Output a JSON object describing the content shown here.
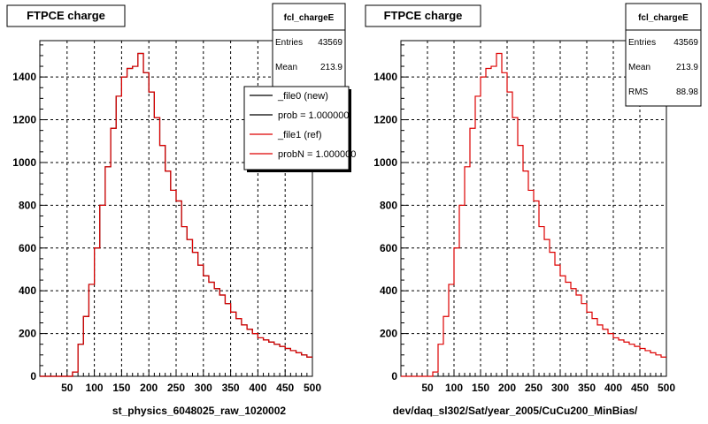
{
  "colors": {
    "new": "#000000",
    "ref": "#dd0000",
    "frame": "#000000",
    "grid": "#000000"
  },
  "chart_data": [
    {
      "type": "bar",
      "title": "FTPCE charge",
      "xlabel": "st_physics_6048025_raw_1020002",
      "xlim": [
        0,
        500
      ],
      "ylim": [
        0,
        1570
      ],
      "x_ticks": [
        "50",
        "100",
        "150",
        "200",
        "250",
        "300",
        "350",
        "400",
        "450",
        "500"
      ],
      "y_ticks": [
        "0",
        "200",
        "400",
        "600",
        "800",
        "1000",
        "1200",
        "1400"
      ],
      "grid": true,
      "stats": {
        "name": "fcl_chargeE",
        "entries_label": "Entries",
        "entries": "43569",
        "mean_label": "Mean",
        "mean": "213.9"
      },
      "legend": {
        "placement": "top-right",
        "entries": [
          "_file0 (new)",
          "prob = 1.000000",
          "_file1 (ref)",
          "probN = 1.000000"
        ]
      },
      "series": [
        {
          "name": "_file0 (new)",
          "bin_width": 10,
          "x_start": 0,
          "values": [
            0,
            0,
            0,
            0,
            0,
            0,
            20,
            150,
            280,
            430,
            600,
            800,
            980,
            1160,
            1310,
            1400,
            1440,
            1450,
            1510,
            1420,
            1330,
            1210,
            1080,
            960,
            870,
            820,
            700,
            640,
            580,
            520,
            470,
            440,
            410,
            380,
            340,
            300,
            270,
            240,
            220,
            200,
            180,
            170,
            160,
            150,
            140,
            130,
            120,
            110,
            100,
            90
          ]
        },
        {
          "name": "_file1 (ref)",
          "bin_width": 10,
          "x_start": 0,
          "values": [
            0,
            0,
            0,
            0,
            0,
            0,
            20,
            150,
            280,
            430,
            600,
            800,
            980,
            1160,
            1310,
            1400,
            1440,
            1450,
            1510,
            1420,
            1330,
            1210,
            1080,
            960,
            870,
            820,
            700,
            640,
            580,
            520,
            470,
            440,
            410,
            380,
            340,
            300,
            270,
            240,
            220,
            200,
            180,
            170,
            160,
            150,
            140,
            130,
            120,
            110,
            100,
            90
          ]
        }
      ]
    },
    {
      "type": "bar",
      "title": "FTPCE charge",
      "xlabel": "dev/daq_sl302/Sat/year_2005/CuCu200_MinBias/",
      "xlim": [
        0,
        500
      ],
      "ylim": [
        0,
        1570
      ],
      "x_ticks": [
        "50",
        "100",
        "150",
        "200",
        "250",
        "300",
        "350",
        "400",
        "450",
        "500"
      ],
      "y_ticks": [
        "0",
        "200",
        "400",
        "600",
        "800",
        "1000",
        "1200",
        "1400"
      ],
      "grid": true,
      "stats": {
        "name": "fcl_chargeE",
        "entries_label": "Entries",
        "entries": "43569",
        "mean_label": "Mean",
        "mean": "213.9",
        "rms_label": "RMS",
        "rms": "88.98"
      },
      "series": [
        {
          "name": "",
          "bin_width": 10,
          "x_start": 0,
          "values": [
            0,
            0,
            0,
            0,
            0,
            0,
            20,
            150,
            280,
            430,
            600,
            800,
            980,
            1160,
            1310,
            1400,
            1440,
            1450,
            1510,
            1420,
            1330,
            1210,
            1080,
            960,
            870,
            820,
            700,
            640,
            580,
            520,
            470,
            440,
            410,
            380,
            340,
            300,
            270,
            240,
            220,
            200,
            180,
            170,
            160,
            150,
            140,
            130,
            120,
            110,
            100,
            90
          ]
        }
      ]
    }
  ]
}
